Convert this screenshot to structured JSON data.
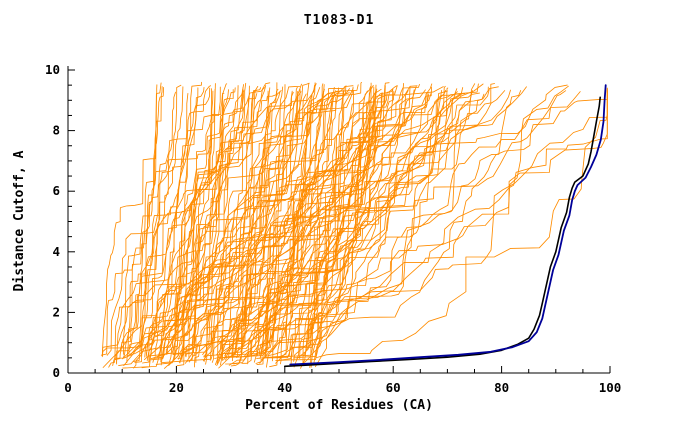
{
  "chart_data": {
    "type": "line",
    "title": "T1083-D1",
    "xlabel": "Percent of Residues (CA)",
    "ylabel": "Distance Cutoff, A",
    "xlim": [
      0,
      100
    ],
    "ylim": [
      0,
      10
    ],
    "xticks": [
      0,
      20,
      40,
      60,
      80,
      100
    ],
    "yticks": [
      0,
      2,
      4,
      6,
      8,
      10
    ],
    "x_minor_step": 5,
    "y_minor_step": 0.5,
    "grid": false,
    "legend": "none",
    "colors": {
      "ensemble": "#ff8c00",
      "black_curve": "#000000",
      "blue_curve": "#000099"
    },
    "series": [
      {
        "name": "black-curve",
        "color": "#000000",
        "width": 1.6,
        "points": [
          [
            40,
            0.22
          ],
          [
            48,
            0.3
          ],
          [
            56,
            0.38
          ],
          [
            63,
            0.45
          ],
          [
            70,
            0.52
          ],
          [
            76,
            0.62
          ],
          [
            80,
            0.75
          ],
          [
            83,
            0.95
          ],
          [
            85,
            1.15
          ],
          [
            86,
            1.45
          ],
          [
            87,
            1.9
          ],
          [
            87.5,
            2.3
          ],
          [
            88,
            2.7
          ],
          [
            88.5,
            3.1
          ],
          [
            89,
            3.5
          ],
          [
            90,
            4.0
          ],
          [
            90.5,
            4.4
          ],
          [
            91,
            4.8
          ],
          [
            92,
            5.3
          ],
          [
            92.5,
            5.8
          ],
          [
            93,
            6.1
          ],
          [
            93.5,
            6.3
          ],
          [
            95,
            6.5
          ],
          [
            96,
            6.9
          ],
          [
            96.5,
            7.3
          ],
          [
            97,
            7.8
          ],
          [
            97.5,
            8.3
          ],
          [
            98,
            8.8
          ],
          [
            98.2,
            9.1
          ]
        ]
      },
      {
        "name": "blue-curve",
        "color": "#000099",
        "width": 1.8,
        "points": [
          [
            41,
            0.28
          ],
          [
            50,
            0.36
          ],
          [
            58,
            0.44
          ],
          [
            65,
            0.52
          ],
          [
            72,
            0.6
          ],
          [
            78,
            0.7
          ],
          [
            82,
            0.85
          ],
          [
            85,
            1.05
          ],
          [
            86.5,
            1.35
          ],
          [
            87.5,
            1.8
          ],
          [
            88,
            2.2
          ],
          [
            88.5,
            2.6
          ],
          [
            89,
            3.0
          ],
          [
            89.5,
            3.4
          ],
          [
            90.5,
            3.9
          ],
          [
            91,
            4.3
          ],
          [
            91.5,
            4.7
          ],
          [
            92.5,
            5.2
          ],
          [
            93,
            5.7
          ],
          [
            93.5,
            6.0
          ],
          [
            94,
            6.2
          ],
          [
            95.5,
            6.45
          ],
          [
            96.5,
            6.8
          ],
          [
            97.5,
            7.2
          ],
          [
            98.3,
            7.7
          ],
          [
            98.8,
            8.3
          ],
          [
            99,
            9.0
          ],
          [
            99.2,
            9.5
          ]
        ]
      }
    ],
    "ensemble": {
      "name": "orange-model-curves",
      "color": "#ff8c00",
      "count": 150,
      "seed": 7,
      "stroke_width": 0.85,
      "x_start_range": [
        6,
        46
      ],
      "y_top_range": [
        9.2,
        9.6
      ],
      "x_max": 99.5
    }
  }
}
